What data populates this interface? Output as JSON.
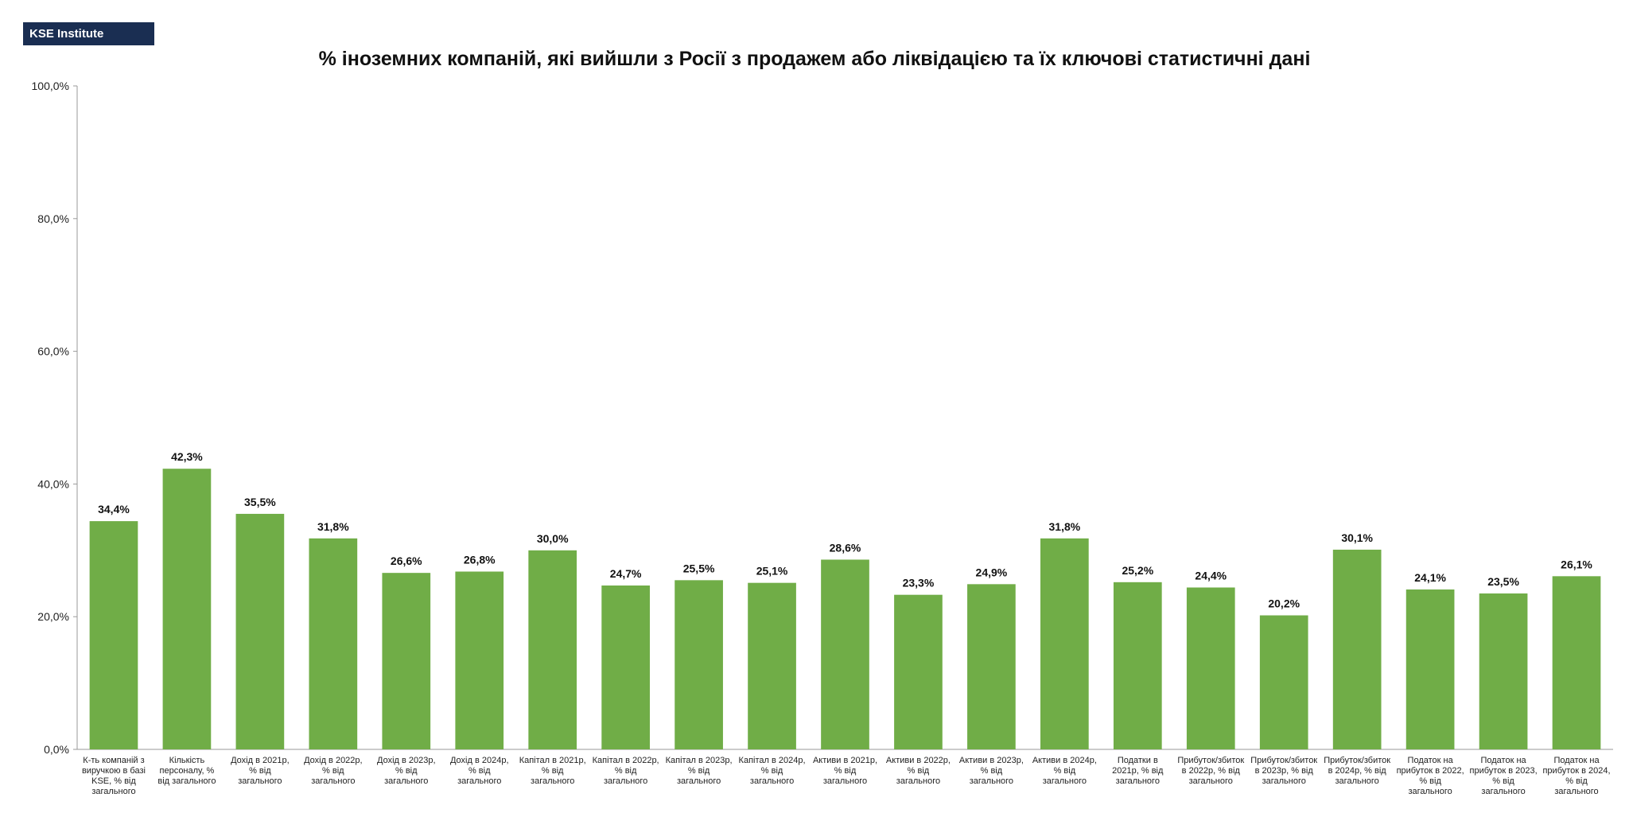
{
  "logo": {
    "text": "KSE Institute"
  },
  "chart_data": {
    "type": "bar",
    "title": "% іноземних компаній, які вийшли з Росії з продажем або ліквідацією та їх ключові статистичні дані",
    "xlabel": "",
    "ylabel": "",
    "ylim": [
      0,
      100
    ],
    "yticks": [
      0,
      20,
      40,
      60,
      80,
      100
    ],
    "ytick_labels": [
      "0,0%",
      "20,0%",
      "40,0%",
      "60,0%",
      "80,0%",
      "100,0%"
    ],
    "grid": false,
    "legend": "none",
    "bar_color": "#70ad47",
    "categories": [
      [
        "К-ть компаній з",
        "виручкою в базі",
        "KSE, % від",
        "загального"
      ],
      [
        "Кількість",
        "персоналу, %",
        "від загального"
      ],
      [
        "Дохід в 2021р,",
        "% від",
        "загального"
      ],
      [
        "Дохід в 2022р,",
        "% від",
        "загального"
      ],
      [
        "Дохід в 2023р,",
        "% від",
        "загального"
      ],
      [
        "Дохід в 2024р,",
        "% від",
        "загального"
      ],
      [
        "Капітал в 2021р,",
        "% від",
        "загального"
      ],
      [
        "Капітал в 2022р,",
        "% від",
        "загального"
      ],
      [
        "Капітал в 2023р,",
        "% від",
        "загального"
      ],
      [
        "Капітал в 2024р,",
        "% від",
        "загального"
      ],
      [
        "Активи в 2021р,",
        "% від",
        "загального"
      ],
      [
        "Активи в 2022р,",
        "% від",
        "загального"
      ],
      [
        "Активи в 2023р,",
        "% від",
        "загального"
      ],
      [
        "Активи в 2024р,",
        "% від",
        "загального"
      ],
      [
        "Податки в",
        "2021р, % від",
        "загального"
      ],
      [
        "Прибуток/збиток",
        "в 2022р, % від",
        "загального"
      ],
      [
        "Прибуток/збиток",
        "в 2023р, % від",
        "загального"
      ],
      [
        "Прибуток/збиток",
        "в 2024р, % від",
        "загального"
      ],
      [
        "Податок на",
        "прибуток в 2022,",
        "% від",
        "загального"
      ],
      [
        "Податок на",
        "прибуток в 2023,",
        "% від",
        "загального"
      ],
      [
        "Податок на",
        "прибуток в 2024,",
        "% від",
        "загального"
      ]
    ],
    "values": [
      34.4,
      42.3,
      35.5,
      31.8,
      26.6,
      26.8,
      30.0,
      24.7,
      25.5,
      25.1,
      28.6,
      23.3,
      24.9,
      31.8,
      25.2,
      24.4,
      20.2,
      30.1,
      24.1,
      23.5,
      26.1
    ],
    "value_labels": [
      "34,4%",
      "42,3%",
      "35,5%",
      "31,8%",
      "26,6%",
      "26,8%",
      "30,0%",
      "24,7%",
      "25,5%",
      "25,1%",
      "28,6%",
      "23,3%",
      "24,9%",
      "31,8%",
      "25,2%",
      "24,4%",
      "20,2%",
      "30,1%",
      "24,1%",
      "23,5%",
      "26,1%"
    ]
  }
}
